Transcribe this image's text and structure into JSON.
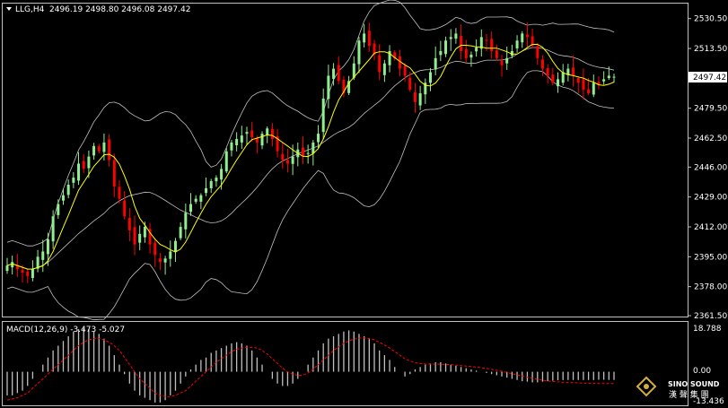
{
  "header": {
    "symbol_label": "LLG,H4",
    "ohlc": "2496.19 2498.80 2496.08 2497.42"
  },
  "macd": {
    "label": "MACD(12,26,9) -3.473 -5.027",
    "scale_top": "18.788",
    "scale_zero": "0.00",
    "scale_bottom": "-13.436"
  },
  "current_price": "2497.42",
  "logo": {
    "name": "SINO SOUND",
    "cn": "漢 聲 集 團"
  },
  "colors": {
    "background": "#000000",
    "bull": "#90EE90",
    "bear": "#FF0000",
    "ma": "#FFFF00",
    "bands": "#C0C0C0",
    "macd_hist": "#C0C0C0",
    "macd_signal": "#FF0000"
  },
  "chart_data": {
    "type": "candlestick",
    "y_axis_ticks": [
      "2530.50",
      "2513.50",
      "2497.42",
      "2479.50",
      "2462.50",
      "2446.00",
      "2429.00",
      "2412.00",
      "2395.00",
      "2378.00",
      "2361.50"
    ],
    "ylim": [
      2361.5,
      2537
    ],
    "close": [
      2390,
      2392,
      2388,
      2386,
      2384,
      2388,
      2395,
      2398,
      2405,
      2418,
      2425,
      2430,
      2436,
      2440,
      2448,
      2445,
      2452,
      2458,
      2455,
      2460,
      2450,
      2435,
      2428,
      2418,
      2410,
      2402,
      2408,
      2412,
      2402,
      2396,
      2392,
      2394,
      2398,
      2404,
      2412,
      2420,
      2425,
      2428,
      2430,
      2434,
      2438,
      2440,
      2445,
      2455,
      2460,
      2462,
      2464,
      2466,
      2463,
      2460,
      2465,
      2468,
      2462,
      2455,
      2450,
      2448,
      2452,
      2456,
      2452,
      2454,
      2460,
      2465,
      2485,
      2498,
      2502,
      2495,
      2488,
      2495,
      2505,
      2518,
      2522,
      2515,
      2510,
      2500,
      2505,
      2512,
      2508,
      2502,
      2498,
      2490,
      2483,
      2488,
      2494,
      2500,
      2508,
      2512,
      2518,
      2520,
      2522,
      2512,
      2508,
      2510,
      2514,
      2520,
      2518,
      2512,
      2508,
      2504,
      2508,
      2512,
      2518,
      2522,
      2520,
      2515,
      2508,
      2502,
      2498,
      2494,
      2496,
      2500,
      2502,
      2498,
      2494,
      2490,
      2488,
      2494,
      2493,
      2496,
      2498,
      2497.42
    ],
    "macd_hist": [
      -10,
      -10,
      -9,
      -8,
      -6,
      -3,
      0,
      3,
      6,
      9,
      11,
      13,
      15,
      17,
      18,
      18.5,
      18,
      17,
      16,
      14,
      11,
      7,
      3,
      -1,
      -5,
      -8,
      -10,
      -11,
      -12,
      -13,
      -13,
      -12,
      -10,
      -8,
      -5,
      -2,
      1,
      3,
      5,
      6,
      8,
      9,
      10,
      11,
      12,
      12.5,
      12,
      11,
      9,
      6,
      3,
      0,
      -3,
      -5,
      -6,
      -6,
      -5,
      -3,
      0,
      3,
      6,
      9,
      12,
      14,
      15,
      16,
      17,
      17.5,
      17,
      16,
      15,
      14,
      12,
      9,
      7,
      5,
      2,
      0,
      -2,
      -1,
      1,
      2,
      3,
      3.5,
      4,
      4,
      3.5,
      3,
      2.5,
      2,
      1.5,
      1,
      0.5,
      0,
      -0.5,
      -1,
      -1.5,
      -2,
      -2.5,
      -3,
      -3.5,
      -4,
      -4.2,
      -4.5,
      -4.5,
      -4.2,
      -4,
      -3.8,
      -3.6,
      -3.5,
      -3.5,
      -3.5,
      -3.5,
      -3.5,
      -3.5,
      -3.5,
      -3.4,
      -3.4,
      -3.47,
      -3.473
    ],
    "macd_signal": [
      -12,
      -11.5,
      -11,
      -10,
      -9,
      -7,
      -5,
      -3,
      -1,
      1,
      3,
      5,
      7,
      9,
      11,
      12.5,
      13.5,
      14,
      14,
      13.5,
      12.5,
      11,
      9,
      6,
      3,
      0,
      -3,
      -5,
      -7,
      -9,
      -10,
      -10.5,
      -10.5,
      -10,
      -9,
      -8,
      -6,
      -4,
      -2,
      0,
      2,
      4,
      5.5,
      7,
      8.5,
      9.5,
      10,
      10.3,
      10.3,
      10,
      9,
      7.5,
      5.5,
      3.5,
      1.5,
      0,
      -1,
      -1.5,
      -1.5,
      -0.5,
      1,
      3,
      5,
      7,
      9,
      10.5,
      12,
      13,
      13.8,
      14.2,
      14.3,
      14,
      13.5,
      12.5,
      11.3,
      10,
      8.5,
      7,
      5.5,
      4.5,
      3.8,
      3.5,
      3.3,
      3.2,
      3.2,
      3.2,
      3.1,
      3,
      2.8,
      2.6,
      2.4,
      2.2,
      2,
      1.7,
      1.4,
      1,
      0.6,
      0.2,
      -0.3,
      -0.8,
      -1.3,
      -1.8,
      -2.3,
      -2.8,
      -3.2,
      -3.6,
      -3.9,
      -4.1,
      -4.3,
      -4.4,
      -4.5,
      -4.6,
      -4.7,
      -4.8,
      -4.9,
      -4.95,
      -5,
      -5.01,
      -5.02,
      -5.027
    ],
    "macd_ylim": [
      -13.436,
      18.788
    ]
  }
}
